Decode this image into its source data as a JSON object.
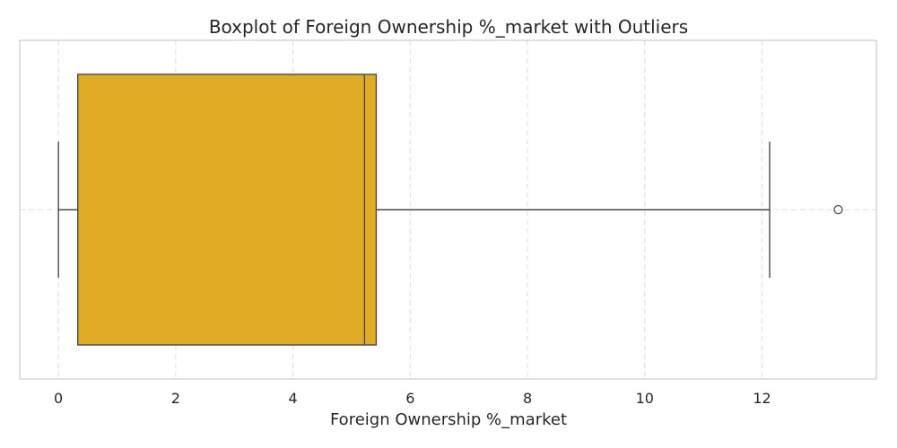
{
  "chart_data": {
    "type": "boxplot",
    "title": "Boxplot of Foreign Ownership %_market with Outliers",
    "xlabel": "Foreign Ownership %_market",
    "ylabel": "",
    "orientation": "horizontal",
    "xlim": [
      -0.66,
      13.95
    ],
    "xticks": [
      0,
      2,
      4,
      6,
      8,
      10,
      12
    ],
    "xtick_labels": [
      "0",
      "2",
      "4",
      "6",
      "8",
      "10",
      "12"
    ],
    "grid": true,
    "box": {
      "whisker_low": 0.0,
      "q1": 0.33,
      "median": 5.22,
      "q3": 5.42,
      "whisker_high": 12.13,
      "outliers": [
        13.3
      ]
    },
    "colors": {
      "box_fill": "#E0AC25",
      "box_edge": "#4a4a4a",
      "grid": "#dddddd",
      "frame": "#cccccc",
      "text": "#262626"
    }
  }
}
